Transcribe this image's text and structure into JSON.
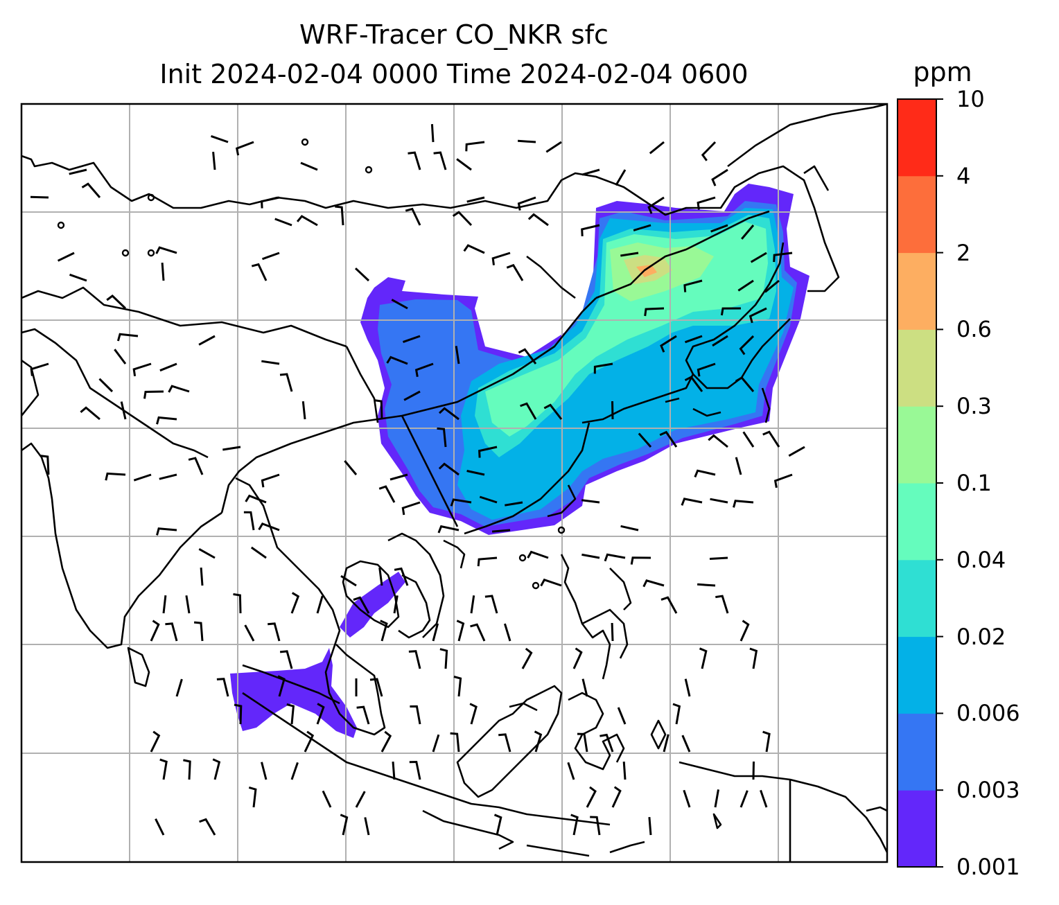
{
  "title": {
    "line1": "WRF-Tracer CO_NKR sfc",
    "line2": "Init 2024-02-04 0000 Time 2024-02-04 0600"
  },
  "colorbar": {
    "units": "ppm",
    "ticks": [
      "0.001",
      "0.003",
      "0.006",
      "0.02",
      "0.04",
      "0.1",
      "0.3",
      "0.6",
      "2",
      "4",
      "10"
    ],
    "colors": [
      "#6327fa",
      "#3576f3",
      "#03b1e7",
      "#2fdfd3",
      "#65fcbd",
      "#99f996",
      "#ccdf82",
      "#fdae61",
      "#fd6e3b",
      "#ff2b18"
    ]
  },
  "map": {
    "gridlines": true,
    "wind_barbs": true,
    "coastlines": true,
    "field": "CO_NKR surface tracer concentration"
  }
}
